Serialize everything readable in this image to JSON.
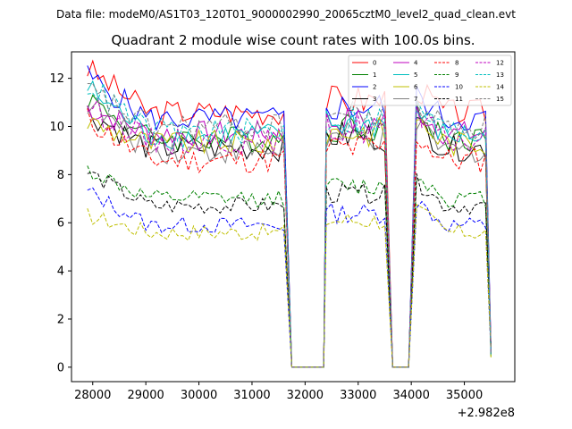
{
  "chart_data": {
    "type": "line",
    "suptitle": "Data file: modeM0/AS1T03_120T01_9000002990_20065cztM0_level2_quad_clean.evt",
    "title": "Quadrant 2 module wise count rates with 100.0s bins.",
    "xlabel": "",
    "ylabel": "",
    "x_offset_label": "+2.982e8",
    "xlim": [
      27600,
      35950
    ],
    "ylim": [
      -0.6,
      13.1
    ],
    "x_ticks": [
      28000,
      29000,
      30000,
      31000,
      32000,
      33000,
      34000,
      35000
    ],
    "x_tick_labels": [
      "28000",
      "29000",
      "30000",
      "31000",
      "32000",
      "33000",
      "34000",
      "35000"
    ],
    "y_ticks": [
      0,
      2,
      4,
      6,
      8,
      10,
      12
    ],
    "y_tick_labels": [
      "0",
      "2",
      "4",
      "6",
      "8",
      "10",
      "12"
    ],
    "grid": false,
    "legend_position": "top-right",
    "time_segments": [
      [
        27900,
        31600
      ],
      [
        32400,
        33550
      ],
      [
        34100,
        35450
      ]
    ],
    "segment_edges": {
      "zero_start": 31750,
      "zero_end": 32350,
      "zero2_start": 33650,
      "zero2_end": 33950,
      "end_x": 35500
    },
    "series": [
      {
        "name": "0",
        "color": "#ff0000",
        "dash": "solid",
        "level": 10.6,
        "start": 12.4
      },
      {
        "name": "1",
        "color": "#008000",
        "dash": "solid",
        "level": 9.5,
        "start": 11.2
      },
      {
        "name": "2",
        "color": "#0000ff",
        "dash": "solid",
        "level": 10.3,
        "start": 12.1
      },
      {
        "name": "3",
        "color": "#000000",
        "dash": "solid",
        "level": 9.1,
        "start": 10.6
      },
      {
        "name": "4",
        "color": "#bf00bf",
        "dash": "solid",
        "level": 9.7,
        "start": 10.8
      },
      {
        "name": "5",
        "color": "#00bfbf",
        "dash": "solid",
        "level": 9.6,
        "start": 11.6
      },
      {
        "name": "6",
        "color": "#bfbf00",
        "dash": "solid",
        "level": 9.3,
        "start": 10.2
      },
      {
        "name": "7",
        "color": "#808080",
        "dash": "solid",
        "level": 9.0,
        "start": 11.0
      },
      {
        "name": "8",
        "color": "#ff0000",
        "dash": "dashed",
        "level": 8.6,
        "start": 10.3
      },
      {
        "name": "9",
        "color": "#008000",
        "dash": "dashed",
        "level": 7.0,
        "start": 8.2
      },
      {
        "name": "10",
        "color": "#0000ff",
        "dash": "dashed",
        "level": 5.9,
        "start": 7.3
      },
      {
        "name": "11",
        "color": "#000000",
        "dash": "dashed",
        "level": 6.7,
        "start": 8.1
      },
      {
        "name": "12",
        "color": "#bf00bf",
        "dash": "dashed",
        "level": 9.4,
        "start": 10.9
      },
      {
        "name": "13",
        "color": "#00bfbf",
        "dash": "dashed",
        "level": 9.8,
        "start": 11.8
      },
      {
        "name": "14",
        "color": "#bfbf00",
        "dash": "dashed",
        "level": 5.6,
        "start": 6.3
      },
      {
        "name": "15",
        "color": "#808080",
        "dash": "dashed",
        "level": 10.0,
        "start": 11.5
      }
    ]
  }
}
